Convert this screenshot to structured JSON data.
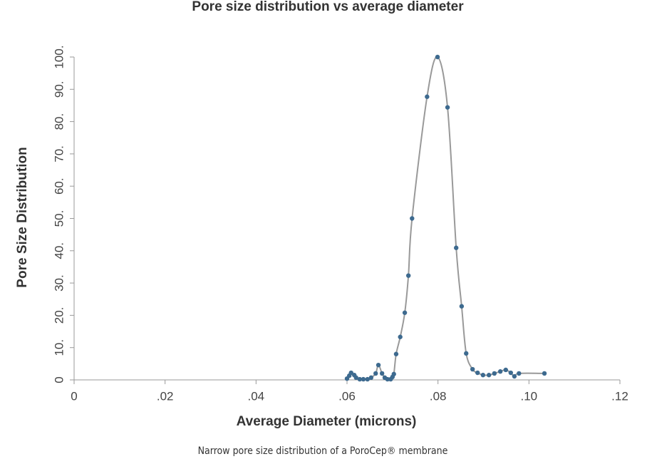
{
  "chart_data": {
    "type": "line",
    "title": "Pore size distribution vs average diameter",
    "xlabel": "Average Diameter (microns)",
    "ylabel": "Pore Size Distribution",
    "caption": "Narrow pore size distribution of a PoroCep® membrane",
    "x": [
      0.06,
      0.0605,
      0.0609,
      0.0616,
      0.062,
      0.0628,
      0.0636,
      0.0645,
      0.0653,
      0.0663,
      0.0669,
      0.0677,
      0.0683,
      0.0689,
      0.0696,
      0.07,
      0.0703,
      0.0708,
      0.0717,
      0.0727,
      0.0735,
      0.0743,
      0.0776,
      0.0799,
      0.0821,
      0.084,
      0.0852,
      0.0862,
      0.0876,
      0.0887,
      0.0899,
      0.0912,
      0.0924,
      0.0937,
      0.0949,
      0.096,
      0.0968,
      0.0978,
      0.1034
    ],
    "series": [
      {
        "name": "Pore Size Distribution",
        "color": "#3d6a8f",
        "line_color": "#999999",
        "values": [
          0.4,
          1.3,
          2.2,
          1.5,
          0.7,
          0.2,
          0.2,
          0.2,
          0.7,
          2.0,
          4.6,
          2.0,
          0.7,
          0.2,
          0.2,
          0.9,
          1.8,
          8.0,
          13.3,
          20.8,
          32.3,
          50,
          87.7,
          100,
          84.4,
          40.9,
          22.8,
          8.2,
          3.3,
          2.2,
          1.5,
          1.5,
          2.0,
          2.6,
          3.1,
          2.2,
          1.1,
          2.0,
          2.0
        ]
      }
    ],
    "xlim": [
      0,
      0.12
    ],
    "xticks": [
      0,
      {
        "value": 0.02,
        "label": ".02"
      },
      {
        "value": 0.04,
        "label": ".04"
      },
      {
        "value": 0.06,
        "label": ".06"
      },
      {
        "value": 0.08,
        "label": ".08"
      },
      {
        "value": 0.1,
        "label": ".10"
      },
      {
        "value": 0.12,
        "label": ".12"
      }
    ],
    "ylim": [
      0,
      100
    ],
    "yticks": [
      0,
      {
        "value": 10,
        "label": "10."
      },
      {
        "value": 20,
        "label": "20."
      },
      {
        "value": 30,
        "label": "30."
      },
      {
        "value": 40,
        "label": "40."
      },
      {
        "value": 50,
        "label": "50."
      },
      {
        "value": 60,
        "label": "60."
      },
      {
        "value": 70,
        "label": "70."
      },
      {
        "value": 80,
        "label": "80."
      },
      {
        "value": 90,
        "label": "90."
      },
      {
        "value": 100,
        "label": "100."
      }
    ],
    "grid": false
  }
}
